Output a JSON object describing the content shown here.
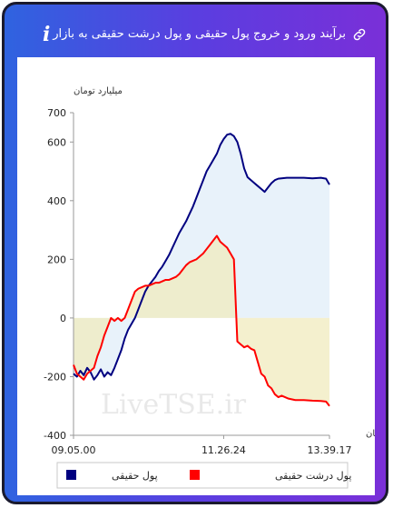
{
  "header": {
    "title": "برآیند ورود و خروج پول حقیقی و پول درشت حقیقی به بازار",
    "link_icon": "link-icon",
    "info_icon": "info-icon",
    "info_label": "i"
  },
  "chart_data": {
    "type": "line",
    "ylabel": "میلیارد تومان",
    "xlabel": "زمان",
    "ylim": [
      -400,
      700
    ],
    "yticks": [
      -400,
      -200,
      0,
      200,
      400,
      600,
      700
    ],
    "xtick_labels": [
      "09.05.00",
      "11.26.24",
      "13.39.17"
    ],
    "watermark": "LiveTSE.ir",
    "legend_position": "bottom",
    "fill_colors": {
      "positive_band": "#e8f3fb",
      "negative_band": "#fbf3c9"
    },
    "series": [
      {
        "name": "پول حقیقی",
        "color": "#000080",
        "fill": "#e6f1fa",
        "values": [
          [
            0,
            -190
          ],
          [
            2,
            -200
          ],
          [
            4,
            -180
          ],
          [
            6,
            -195
          ],
          [
            8,
            -170
          ],
          [
            10,
            -185
          ],
          [
            12,
            -210
          ],
          [
            14,
            -195
          ],
          [
            16,
            -175
          ],
          [
            18,
            -200
          ],
          [
            20,
            -185
          ],
          [
            22,
            -195
          ],
          [
            24,
            -170
          ],
          [
            26,
            -140
          ],
          [
            28,
            -110
          ],
          [
            30,
            -70
          ],
          [
            32,
            -40
          ],
          [
            34,
            -20
          ],
          [
            36,
            0
          ],
          [
            38,
            30
          ],
          [
            40,
            60
          ],
          [
            42,
            90
          ],
          [
            44,
            110
          ],
          [
            46,
            125
          ],
          [
            48,
            140
          ],
          [
            50,
            160
          ],
          [
            52,
            175
          ],
          [
            54,
            195
          ],
          [
            56,
            215
          ],
          [
            58,
            240
          ],
          [
            60,
            265
          ],
          [
            62,
            290
          ],
          [
            64,
            310
          ],
          [
            66,
            330
          ],
          [
            68,
            355
          ],
          [
            70,
            380
          ],
          [
            72,
            410
          ],
          [
            74,
            440
          ],
          [
            76,
            470
          ],
          [
            78,
            500
          ],
          [
            80,
            520
          ],
          [
            82,
            540
          ],
          [
            84,
            560
          ],
          [
            86,
            590
          ],
          [
            88,
            610
          ],
          [
            90,
            625
          ],
          [
            92,
            628
          ],
          [
            94,
            620
          ],
          [
            96,
            600
          ],
          [
            98,
            560
          ],
          [
            100,
            510
          ],
          [
            102,
            480
          ],
          [
            104,
            470
          ],
          [
            106,
            460
          ],
          [
            108,
            450
          ],
          [
            110,
            440
          ],
          [
            112,
            430
          ],
          [
            114,
            445
          ],
          [
            116,
            460
          ],
          [
            118,
            470
          ],
          [
            120,
            475
          ],
          [
            125,
            478
          ],
          [
            130,
            478
          ],
          [
            135,
            478
          ],
          [
            140,
            476
          ],
          [
            145,
            478
          ],
          [
            148,
            475
          ],
          [
            150,
            455
          ]
        ]
      },
      {
        "name": "پول درشت حقیقی",
        "color": "#ff0000",
        "fill": "#f0ebbd",
        "values": [
          [
            0,
            -160
          ],
          [
            2,
            -190
          ],
          [
            4,
            -200
          ],
          [
            6,
            -210
          ],
          [
            8,
            -190
          ],
          [
            10,
            -180
          ],
          [
            12,
            -170
          ],
          [
            14,
            -130
          ],
          [
            16,
            -100
          ],
          [
            18,
            -60
          ],
          [
            20,
            -30
          ],
          [
            22,
            0
          ],
          [
            24,
            -10
          ],
          [
            26,
            0
          ],
          [
            28,
            -10
          ],
          [
            30,
            0
          ],
          [
            32,
            30
          ],
          [
            34,
            60
          ],
          [
            36,
            90
          ],
          [
            38,
            100
          ],
          [
            40,
            105
          ],
          [
            42,
            110
          ],
          [
            44,
            110
          ],
          [
            46,
            115
          ],
          [
            48,
            120
          ],
          [
            50,
            120
          ],
          [
            52,
            125
          ],
          [
            54,
            130
          ],
          [
            56,
            130
          ],
          [
            58,
            135
          ],
          [
            60,
            140
          ],
          [
            62,
            150
          ],
          [
            64,
            165
          ],
          [
            66,
            180
          ],
          [
            68,
            190
          ],
          [
            70,
            195
          ],
          [
            72,
            200
          ],
          [
            74,
            210
          ],
          [
            76,
            220
          ],
          [
            78,
            235
          ],
          [
            80,
            250
          ],
          [
            82,
            265
          ],
          [
            84,
            280
          ],
          [
            86,
            260
          ],
          [
            88,
            250
          ],
          [
            90,
            240
          ],
          [
            92,
            220
          ],
          [
            94,
            200
          ],
          [
            96,
            -80
          ],
          [
            98,
            -90
          ],
          [
            100,
            -100
          ],
          [
            102,
            -95
          ],
          [
            104,
            -105
          ],
          [
            106,
            -110
          ],
          [
            108,
            -150
          ],
          [
            110,
            -190
          ],
          [
            112,
            -200
          ],
          [
            114,
            -230
          ],
          [
            116,
            -240
          ],
          [
            118,
            -260
          ],
          [
            120,
            -270
          ],
          [
            122,
            -265
          ],
          [
            124,
            -270
          ],
          [
            126,
            -275
          ],
          [
            130,
            -280
          ],
          [
            135,
            -280
          ],
          [
            140,
            -282
          ],
          [
            145,
            -283
          ],
          [
            148,
            -285
          ],
          [
            150,
            -300
          ]
        ]
      }
    ]
  }
}
